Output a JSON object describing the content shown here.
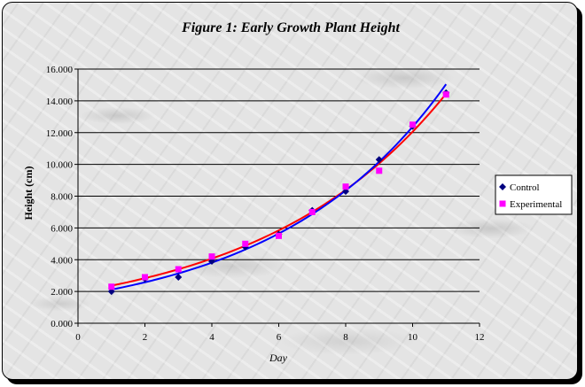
{
  "chart_data": {
    "type": "scatter",
    "title": "Figure 1: Early  Growth Plant Height",
    "xlabel": "Day",
    "ylabel": "Height (cm)",
    "xlim": [
      0,
      12
    ],
    "ylim": [
      0,
      16
    ],
    "x_ticks": [
      "0",
      "2",
      "4",
      "6",
      "8",
      "10",
      "12"
    ],
    "y_ticks": [
      "0.000",
      "2.000",
      "4.000",
      "6.000",
      "8.000",
      "10.000",
      "12.000",
      "14.000",
      "16.000"
    ],
    "grid": "horizontal",
    "legend_position": "right",
    "trendline": "exponential",
    "series": [
      {
        "name": "Control",
        "marker": "diamond",
        "color": "#000080",
        "trend_color": "#0000ff",
        "x": [
          1,
          2,
          3,
          4,
          5,
          6,
          7,
          8,
          9,
          10,
          11
        ],
        "y": [
          2.0,
          2.8,
          2.9,
          3.9,
          4.8,
          5.6,
          7.1,
          8.3,
          10.3,
          12.4,
          14.5
        ]
      },
      {
        "name": "Experimental",
        "marker": "square",
        "color": "#ff00ff",
        "trend_color": "#ff0000",
        "x": [
          1,
          2,
          3,
          4,
          5,
          6,
          7,
          8,
          9,
          10,
          11
        ],
        "y": [
          2.3,
          2.9,
          3.4,
          4.2,
          5.0,
          5.5,
          7.0,
          8.6,
          9.6,
          12.5,
          14.4
        ]
      }
    ]
  }
}
